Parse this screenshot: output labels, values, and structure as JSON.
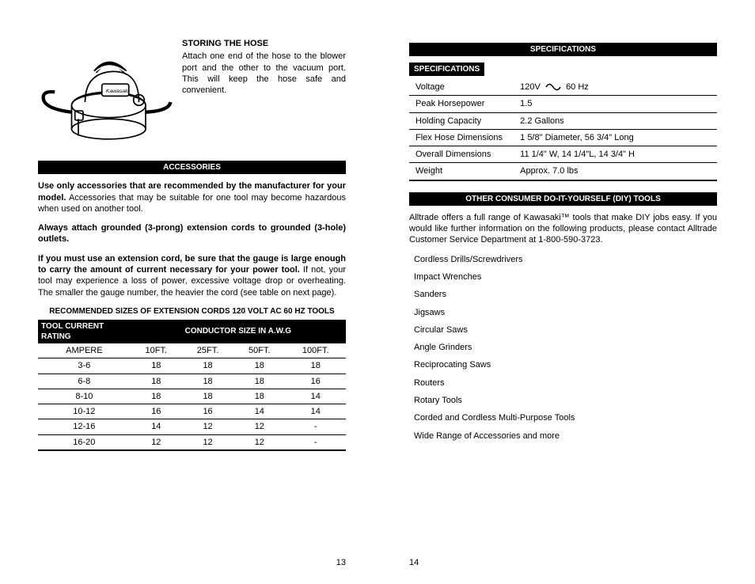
{
  "left": {
    "pageNumber": "13",
    "storing": {
      "heading": "STORING THE HOSE",
      "body": "Attach one end of the hose to the blower port and the other to the vacuum port. This will keep the hose safe and convenient."
    },
    "accessoriesBar": "ACCESSORIES",
    "para1_bold": "Use only accessories that are recommended by the manufacturer for your model.",
    "para1_rest": " Accessories that may be suitable for one tool may become hazardous when used on another tool.",
    "para2": "Always attach grounded (3-prong) extension cords to grounded (3-hole) outlets.",
    "para3_bold": "If you must use an extension cord, be sure that the gauge is large enough to carry the amount of current necessary for your power tool.",
    "para3_rest": " If not, your tool may experience a loss of power, excessive voltage drop or overheating. The smaller the gauge number, the heavier the cord (see table on next page).",
    "cordTitle": "RECOMMENDED SIZES OF EXTENSION CORDS 120 VOLT AC 60 HZ TOOLS",
    "cordHeaders": {
      "tool": "TOOL CURRENT RATING",
      "cond": "CONDUCTOR SIZE IN A.W.G"
    },
    "cordCols": {
      "amp": "AMPERE",
      "c1": "10FT.",
      "c2": "25FT.",
      "c3": "50FT.",
      "c4": "100FT."
    },
    "cordRows": [
      {
        "a": "3-6",
        "v": [
          "18",
          "18",
          "18",
          "18"
        ]
      },
      {
        "a": "6-8",
        "v": [
          "18",
          "18",
          "18",
          "16"
        ]
      },
      {
        "a": "8-10",
        "v": [
          "18",
          "18",
          "18",
          "14"
        ]
      },
      {
        "a": "10-12",
        "v": [
          "16",
          "16",
          "14",
          "14"
        ]
      },
      {
        "a": "12-16",
        "v": [
          "14",
          "12",
          "12",
          "-"
        ]
      },
      {
        "a": "16-20",
        "v": [
          "12",
          "12",
          "12",
          "-"
        ]
      }
    ]
  },
  "right": {
    "pageNumber": "14",
    "specBar": "SPECIFICATIONS",
    "specSub": "SPECIFICATIONS",
    "specs": [
      {
        "k": "Voltage",
        "v": "120V",
        "hz": "60 Hz",
        "wave": true
      },
      {
        "k": "Peak Horsepower",
        "v": "1.5"
      },
      {
        "k": "Holding Capacity",
        "v": "2.2 Gallons"
      },
      {
        "k": "Flex Hose Dimensions",
        "v": "1 5/8\" Diameter, 56 3/4\" Long"
      },
      {
        "k": "Overall Dimensions",
        "v": "11 1/4\" W, 14 1/4\"L, 14 3/4\" H"
      },
      {
        "k": "Weight",
        "v": "Approx. 7.0 lbs"
      }
    ],
    "diyBar": "OTHER CONSUMER DO-IT-YOURSELF (DIY) TOOLS",
    "diyPara": "Alltrade offers a full range of Kawasaki™ tools that make DIY jobs easy. If you would like further information on the following products, please contact Alltrade Customer Service Department at 1-800-590-3723.",
    "tools": [
      "Cordless Drills/Screwdrivers",
      "Impact Wrenches",
      "Sanders",
      "Jigsaws",
      "Circular Saws",
      "Angle Grinders",
      "Reciprocating Saws",
      "Routers",
      "Rotary Tools",
      "Corded and Cordless Multi-Purpose Tools",
      "Wide Range of Accessories and more"
    ]
  }
}
